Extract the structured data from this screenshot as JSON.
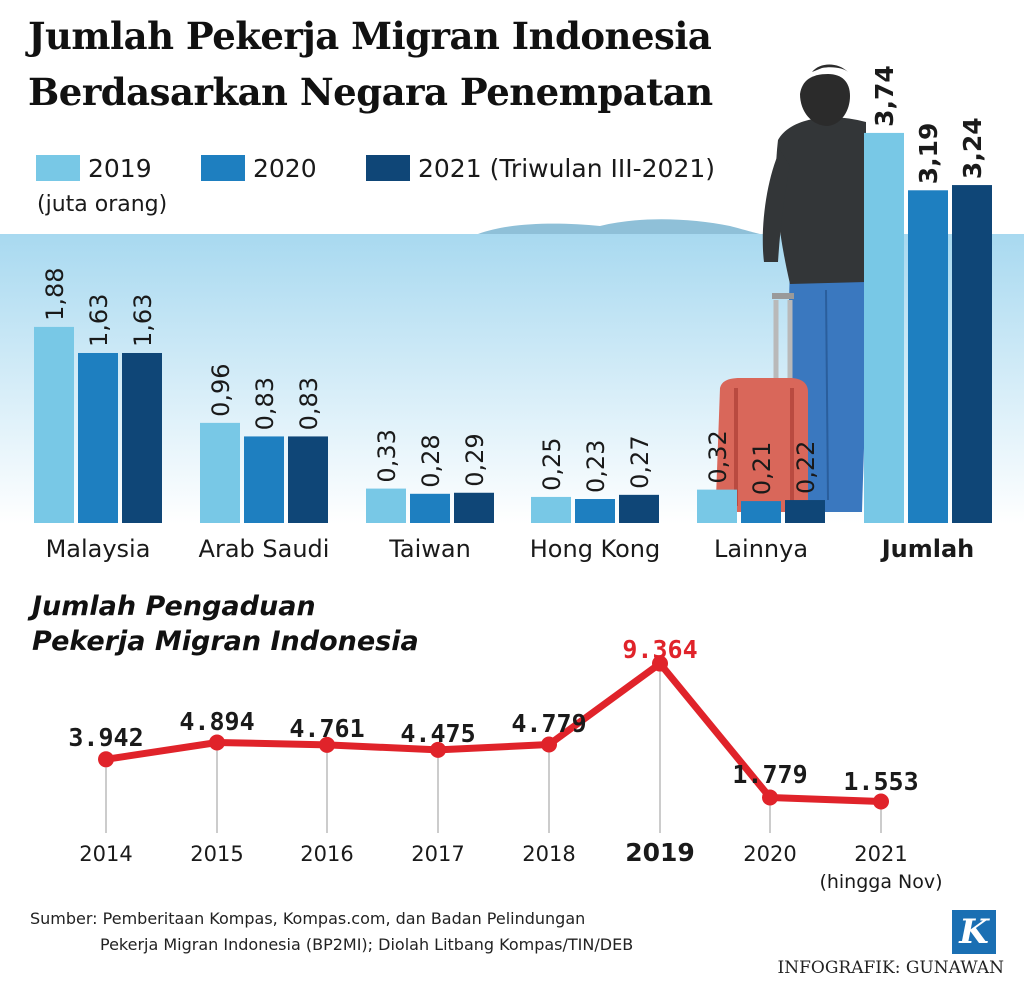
{
  "title": {
    "line1": "Jumlah Pekerja Migran Indonesia",
    "line2": "Berdasarkan Negara Penempatan"
  },
  "legend": [
    {
      "label": "2019",
      "color": "#78c8e6"
    },
    {
      "label": "2020",
      "color": "#1e7fc0"
    },
    {
      "label": "2021 (Triwulan III-2021)",
      "color": "#0f4677"
    }
  ],
  "unit_note": "(juta orang)",
  "subtitle": {
    "line1": "Jumlah Pengaduan",
    "line2": "Pekerja Migran Indonesia"
  },
  "source": {
    "line1": "Sumber: Pemberitaan Kompas, Kompas.com, dan Badan Pelindungan",
    "line2": "Pekerja Migran Indonesia (BP2MI); Diolah Litbang Kompas/TIN/DEB"
  },
  "credit": "INFOGRAFIK: GUNAWAN",
  "logo_letter": "K",
  "chart_data": [
    {
      "type": "bar",
      "categories": [
        "Malaysia",
        "Arab Saudi",
        "Taiwan",
        "Hong Kong",
        "Lainnya",
        "Jumlah"
      ],
      "series": [
        {
          "name": "2019",
          "values": [
            1.88,
            0.96,
            0.33,
            0.25,
            0.32,
            3.74
          ],
          "labels": [
            "1,88",
            "0,96",
            "0,33",
            "0,25",
            "0,32",
            "3,74"
          ],
          "color": "#78c8e6"
        },
        {
          "name": "2020",
          "values": [
            1.63,
            0.83,
            0.28,
            0.23,
            0.21,
            3.19
          ],
          "labels": [
            "1,63",
            "0,83",
            "0,28",
            "0,23",
            "0,21",
            "3,19"
          ],
          "color": "#1e7fc0"
        },
        {
          "name": "2021 (Triwulan III-2021)",
          "values": [
            1.63,
            0.83,
            0.29,
            0.27,
            0.22,
            3.24
          ],
          "labels": [
            "1,63",
            "0,83",
            "0,29",
            "0,27",
            "0,22",
            "3,24"
          ],
          "color": "#0f4677"
        }
      ],
      "ylabel": "(juta orang)"
    },
    {
      "type": "line",
      "x": [
        "2014",
        "2015",
        "2016",
        "2017",
        "2018",
        "2019",
        "2020",
        "2021"
      ],
      "x_notes": {
        "2021": "(hingga Nov)"
      },
      "values": [
        3942,
        4894,
        4761,
        4475,
        4779,
        9364,
        1779,
        1553
      ],
      "labels": [
        "3.942",
        "4.894",
        "4.761",
        "4.475",
        "4.779",
        "9.364",
        "1.779",
        "1.553"
      ],
      "highlight": "2019",
      "color": "#e0232a",
      "highlight_color": "#e0232a"
    }
  ]
}
